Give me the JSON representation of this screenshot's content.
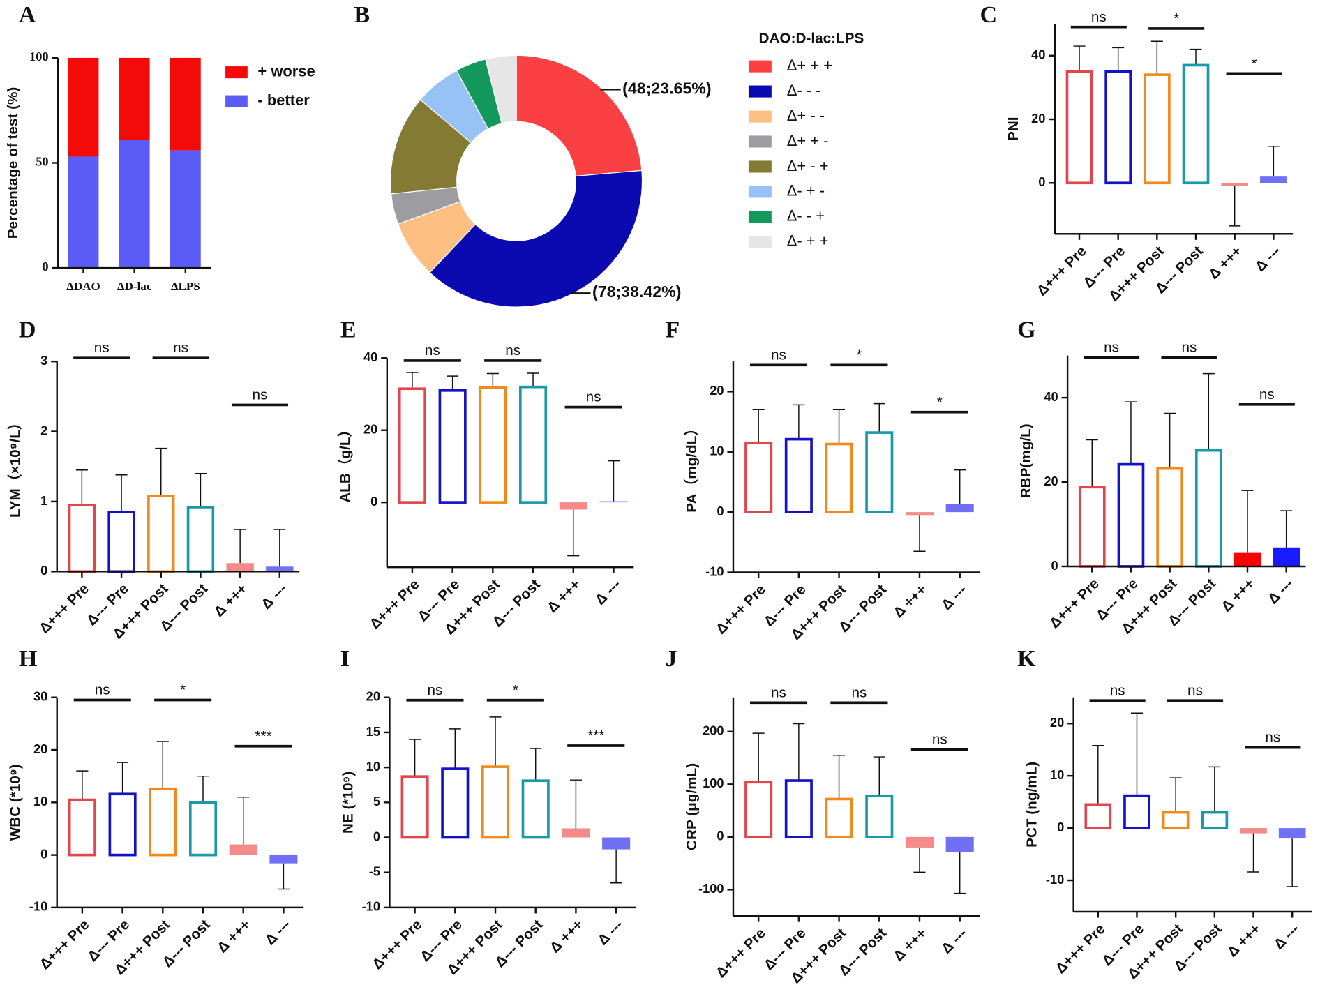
{
  "chart_data": [
    {
      "type": "stacked_bar",
      "panel": "A",
      "ylabel": "Percentage of test (%)",
      "categories": [
        "ΔDAO",
        "ΔD-lac",
        "ΔLPS"
      ],
      "series": [
        {
          "name": "- better",
          "color": "#5b5bf5",
          "values": [
            53,
            61,
            56
          ]
        },
        {
          "name": "+ worse",
          "color": "#f50a0a",
          "values": [
            47,
            39,
            44
          ]
        }
      ],
      "ylim": [
        0,
        100
      ],
      "yticks": [
        0,
        50,
        100
      ]
    },
    {
      "type": "donut",
      "panel": "B",
      "legend_title": "DAO:D-lac:LPS",
      "categories": [
        "Δ+ + +",
        "Δ- - -",
        "Δ+ - -",
        "Δ+ + -",
        "Δ+ - +",
        "Δ- + -",
        "Δ- - +",
        "Δ- + +"
      ],
      "values": [
        48,
        78,
        15,
        8,
        26,
        12,
        8,
        8
      ],
      "value_labels": [
        "(48;23.65%)",
        "(78;38.42%)",
        null,
        null,
        null,
        null,
        null,
        null
      ],
      "colors": [
        "#fa4042",
        "#0a0ab0",
        "#fdbf82",
        "#9d9da1",
        "#857a34",
        "#96c2f5",
        "#14995c",
        "#e6e6e6"
      ]
    },
    {
      "type": "bar",
      "panel": "C",
      "ylabel": "PNI",
      "categories": [
        "Δ+++ Pre",
        "Δ--- Pre",
        "Δ+++ Post",
        "Δ--- Post",
        "Δ +++",
        "Δ ---"
      ],
      "values": [
        35,
        35,
        34,
        37,
        -1,
        2
      ],
      "errors": [
        8,
        7.5,
        10.5,
        5,
        12.5,
        9.5
      ],
      "colors": [
        "#e0474c",
        "#1212c8",
        "#f08a1c",
        "#1a9aa8",
        "#f58a8a",
        "#7070f5"
      ],
      "filled": [
        false,
        false,
        false,
        false,
        true,
        true
      ],
      "ylim": [
        -16,
        50
      ],
      "yticks": [
        0,
        20,
        40
      ],
      "annotations": [
        {
          "text": "ns",
          "y": 49
        },
        {
          "text": "*",
          "y": 48.5
        },
        {
          "text": "*",
          "y": 34.4
        }
      ]
    },
    {
      "type": "bar",
      "panel": "D",
      "ylabel": "LYM（×10⁹/L）",
      "categories": [
        "Δ+++ Pre",
        "Δ--- Pre",
        "Δ+++ Post",
        "Δ--- Post",
        "Δ +++",
        "Δ ---"
      ],
      "values": [
        0.95,
        0.85,
        1.08,
        0.92,
        0.12,
        0.07
      ],
      "errors": [
        0.5,
        0.53,
        0.68,
        0.48,
        0.48,
        0.53
      ],
      "colors": [
        "#e0474c",
        "#1212c8",
        "#f08a1c",
        "#1a9aa8",
        "#f58a8a",
        "#7070f5"
      ],
      "filled": [
        false,
        false,
        false,
        false,
        true,
        true
      ],
      "ylim": [
        0,
        3
      ],
      "yticks": [
        0,
        1,
        2,
        3
      ],
      "annotations": [
        {
          "text": "ns",
          "y": 3.05
        },
        {
          "text": "ns",
          "y": 3.05
        },
        {
          "text": "ns",
          "y": 2.38
        }
      ]
    },
    {
      "type": "bar",
      "panel": "E",
      "ylabel": "ALB（g/L）",
      "categories": [
        "Δ+++ Pre",
        "Δ--- Pre",
        "Δ+++ Post",
        "Δ--- Post",
        "Δ +++",
        "Δ ---"
      ],
      "values": [
        31.5,
        31,
        31.8,
        32,
        -2,
        0.3
      ],
      "errors": [
        4.5,
        4,
        3.9,
        3.8,
        12.8,
        11.2
      ],
      "colors": [
        "#e0474c",
        "#1212c8",
        "#f08a1c",
        "#1a9aa8",
        "#f58a8a",
        "#7070f5"
      ],
      "filled": [
        false,
        false,
        false,
        false,
        true,
        true
      ],
      "ylim": [
        -18,
        40
      ],
      "yticks": [
        0,
        20,
        40
      ],
      "annotations": [
        {
          "text": "ns",
          "y": 39.3
        },
        {
          "text": "ns",
          "y": 39.3
        },
        {
          "text": "ns",
          "y": 26.4
        }
      ]
    },
    {
      "type": "bar",
      "panel": "F",
      "ylabel": "PA（mg/dL）",
      "categories": [
        "Δ+++ Pre",
        "Δ--- Pre",
        "Δ+++ Post",
        "Δ--- Post",
        "Δ +++",
        "Δ ---"
      ],
      "values": [
        11.5,
        12.1,
        11.3,
        13.2,
        -0.6,
        1.4
      ],
      "errors": [
        5.5,
        5.7,
        5.7,
        4.8,
        5.9,
        5.6
      ],
      "colors": [
        "#e0474c",
        "#1212c8",
        "#f08a1c",
        "#1a9aa8",
        "#f58a8a",
        "#7070f5"
      ],
      "filled": [
        false,
        false,
        false,
        false,
        true,
        true
      ],
      "ylim": [
        -10,
        25
      ],
      "yticks": [
        -10,
        0,
        10,
        20
      ],
      "annotations": [
        {
          "text": "ns",
          "y": 24.4
        },
        {
          "text": "*",
          "y": 24.4
        },
        {
          "text": "*",
          "y": 16.6
        }
      ]
    },
    {
      "type": "bar",
      "panel": "G",
      "ylabel": "RBP(mg/L)",
      "categories": [
        "Δ+++ Pre",
        "Δ--- Pre",
        "Δ+++ Post",
        "Δ--- Post",
        "Δ +++",
        "Δ ---"
      ],
      "values": [
        18.8,
        24.2,
        23.2,
        27.5,
        3.2,
        4.5
      ],
      "errors": [
        11.2,
        14.8,
        13.1,
        18.2,
        14.8,
        8.7
      ],
      "colors": [
        "#e0474c",
        "#1212c8",
        "#f08a1c",
        "#1a9aa8",
        "#ff0000",
        "#1a1aff"
      ],
      "filled": [
        false,
        false,
        false,
        false,
        true,
        true
      ],
      "ylim": [
        0,
        50
      ],
      "yticks": [
        0,
        20,
        40
      ],
      "annotations": [
        {
          "text": "ns",
          "y": 49.5
        },
        {
          "text": "ns",
          "y": 49.5
        },
        {
          "text": "ns",
          "y": 38.4
        }
      ]
    },
    {
      "type": "bar",
      "panel": "H",
      "ylabel": "WBC (*10⁹)",
      "categories": [
        "Δ+++ Pre",
        "Δ--- Pre",
        "Δ+++ Post",
        "Δ--- Post",
        "Δ +++",
        "Δ ---"
      ],
      "values": [
        10.5,
        11.6,
        12.6,
        10,
        2,
        -1.6
      ],
      "errors": [
        5.5,
        6,
        9,
        5,
        9,
        4.9
      ],
      "colors": [
        "#e0474c",
        "#1212c8",
        "#f08a1c",
        "#1a9aa8",
        "#f58a8a",
        "#7070f5"
      ],
      "filled": [
        false,
        false,
        false,
        false,
        true,
        true
      ],
      "ylim": [
        -10,
        30
      ],
      "yticks": [
        -10,
        0,
        10,
        20,
        30
      ],
      "annotations": [
        {
          "text": "ns",
          "y": 29.5
        },
        {
          "text": "*",
          "y": 29.5
        },
        {
          "text": "***",
          "y": 20.7
        }
      ]
    },
    {
      "type": "bar",
      "panel": "I",
      "ylabel": "NE (*10⁹)",
      "categories": [
        "Δ+++ Pre",
        "Δ--- Pre",
        "Δ+++ Post",
        "Δ--- Post",
        "Δ +++",
        "Δ ---"
      ],
      "values": [
        8.7,
        9.8,
        10.1,
        8.1,
        1.3,
        -1.7
      ],
      "errors": [
        5.3,
        5.7,
        7.1,
        4.6,
        6.9,
        4.8
      ],
      "colors": [
        "#e0474c",
        "#1212c8",
        "#f08a1c",
        "#1a9aa8",
        "#f58a8a",
        "#7070f5"
      ],
      "filled": [
        false,
        false,
        false,
        false,
        true,
        true
      ],
      "ylim": [
        -10,
        20
      ],
      "yticks": [
        -10,
        -5,
        0,
        5,
        10,
        15,
        20
      ],
      "annotations": [
        {
          "text": "ns",
          "y": 19.6
        },
        {
          "text": "*",
          "y": 19.6
        },
        {
          "text": "***",
          "y": 13.1
        }
      ]
    },
    {
      "type": "bar",
      "panel": "J",
      "ylabel": "CRP (μg/mL)",
      "categories": [
        "Δ+++ Pre",
        "Δ--- Pre",
        "Δ+++ Post",
        "Δ--- Post",
        "Δ +++",
        "Δ ---"
      ],
      "values": [
        104,
        107,
        72,
        78,
        -20,
        -28
      ],
      "errors": [
        93,
        108,
        83,
        74,
        47,
        79
      ],
      "colors": [
        "#e0474c",
        "#1212c8",
        "#f08a1c",
        "#1a9aa8",
        "#f58a8a",
        "#7070f5"
      ],
      "filled": [
        false,
        false,
        false,
        false,
        true,
        true
      ],
      "ylim": [
        -150,
        265
      ],
      "yticks": [
        -100,
        0,
        100,
        200
      ],
      "annotations": [
        {
          "text": "ns",
          "y": 255
        },
        {
          "text": "ns",
          "y": 255
        },
        {
          "text": "ns",
          "y": 166
        }
      ]
    },
    {
      "type": "bar",
      "panel": "K",
      "ylabel": "PCT (ng/mL)",
      "categories": [
        "Δ+++ Pre",
        "Δ--- Pre",
        "Δ+++ Post",
        "Δ--- Post",
        "Δ +++",
        "Δ ---"
      ],
      "values": [
        4.5,
        6.2,
        3,
        3,
        -1,
        -2
      ],
      "errors": [
        11.3,
        15.8,
        6.6,
        8.7,
        7.4,
        9.2
      ],
      "colors": [
        "#e0474c",
        "#1212c8",
        "#f08a1c",
        "#1a9aa8",
        "#f58a8a",
        "#7070f5"
      ],
      "filled": [
        false,
        false,
        false,
        false,
        true,
        true
      ],
      "ylim": [
        -16,
        25
      ],
      "yticks": [
        -10,
        0,
        10,
        20
      ],
      "annotations": [
        {
          "text": "ns",
          "y": 24.4
        },
        {
          "text": "ns",
          "y": 24.4
        },
        {
          "text": "ns",
          "y": 15.4
        }
      ]
    }
  ]
}
